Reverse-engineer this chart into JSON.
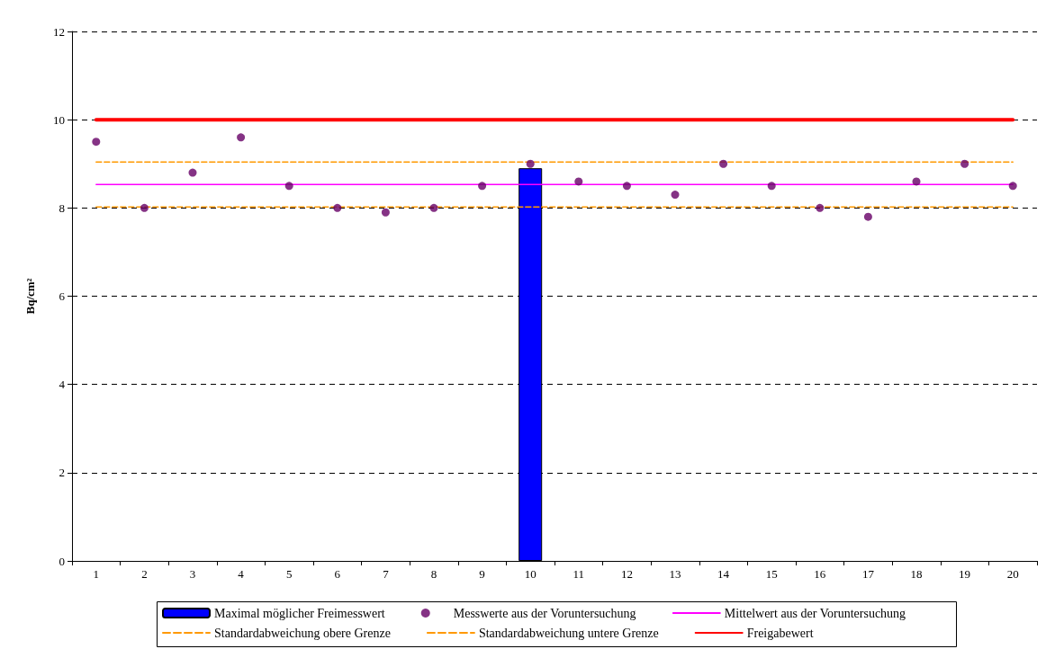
{
  "chart_data": {
    "type": "bar",
    "ylabel": "Bq/cm²",
    "categories": [
      "1",
      "2",
      "3",
      "4",
      "5",
      "6",
      "7",
      "8",
      "9",
      "10",
      "11",
      "12",
      "13",
      "14",
      "15",
      "16",
      "17",
      "18",
      "19",
      "20"
    ],
    "series": [
      {
        "name": "Maximal möglicher Freimesswert",
        "color": "#0000ff",
        "values": [
          null,
          null,
          null,
          null,
          null,
          null,
          null,
          null,
          null,
          8.9,
          null,
          null,
          null,
          null,
          null,
          null,
          null,
          null,
          null,
          null
        ]
      },
      {
        "name": "Messwerte aus der Voruntersuchung",
        "type": "scatter",
        "color": "#660066",
        "marker": "circle",
        "values": [
          9.5,
          8.0,
          8.8,
          9.6,
          8.5,
          8.0,
          7.9,
          8.0,
          8.5,
          9.0,
          8.6,
          8.5,
          8.3,
          9.0,
          8.5,
          8.0,
          7.8,
          8.6,
          9.0,
          8.5
        ]
      },
      {
        "name": "Mittelwert aus der Voruntersuchung",
        "type": "line",
        "color": "#ff00ff",
        "line_style": "solid",
        "values": [
          8.53,
          8.53,
          8.53,
          8.53,
          8.53,
          8.53,
          8.53,
          8.53,
          8.53,
          8.53,
          8.53,
          8.53,
          8.53,
          8.53,
          8.53,
          8.53,
          8.53,
          8.53,
          8.53,
          8.53
        ]
      },
      {
        "name": "Standardabweichung obere Grenze",
        "type": "line",
        "color": "#ff9900",
        "line_style": "dashed",
        "values": [
          9.04,
          9.04,
          9.04,
          9.04,
          9.04,
          9.04,
          9.04,
          9.04,
          9.04,
          9.04,
          9.04,
          9.04,
          9.04,
          9.04,
          9.04,
          9.04,
          9.04,
          9.04,
          9.04,
          9.04
        ]
      },
      {
        "name": "Standardabweichung untere Grenze",
        "type": "line",
        "color": "#ff9900",
        "line_style": "dashed",
        "values": [
          8.02,
          8.02,
          8.02,
          8.02,
          8.02,
          8.02,
          8.02,
          8.02,
          8.02,
          8.02,
          8.02,
          8.02,
          8.02,
          8.02,
          8.02,
          8.02,
          8.02,
          8.02,
          8.02,
          8.02
        ]
      },
      {
        "name": "Freigabewert",
        "type": "line",
        "color": "#ff0000",
        "line_style": "solid",
        "values": [
          10,
          10,
          10,
          10,
          10,
          10,
          10,
          10,
          10,
          10,
          10,
          10,
          10,
          10,
          10,
          10,
          10,
          10,
          10,
          10
        ]
      }
    ],
    "ylim": [
      0,
      12
    ],
    "yticks": [
      0,
      2,
      4,
      6,
      8,
      10,
      12
    ],
    "grid": "y",
    "legend": "bottom",
    "marker": "none"
  }
}
